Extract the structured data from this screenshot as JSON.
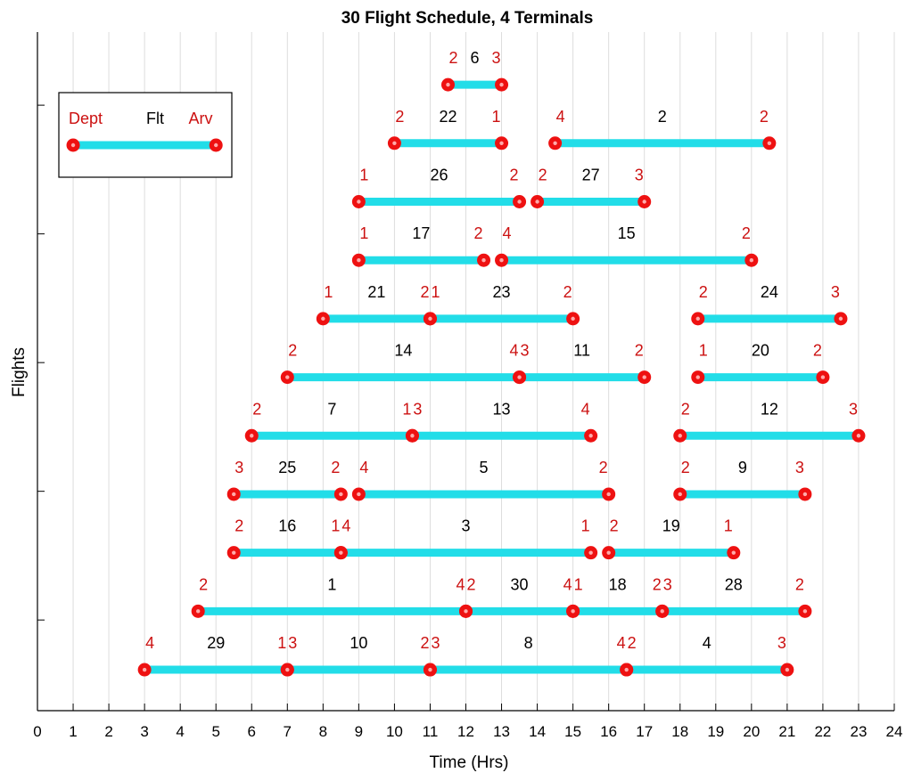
{
  "chart_data": {
    "type": "gantt",
    "title": "30 Flight Schedule, 4 Terminals",
    "xlabel": "Time (Hrs)",
    "ylabel": "Flights",
    "xlim": [
      0,
      24
    ],
    "ylim": [
      0.3,
      11.9
    ],
    "xticks": [
      0,
      1,
      2,
      3,
      4,
      5,
      6,
      7,
      8,
      9,
      10,
      11,
      12,
      13,
      14,
      15,
      16,
      17,
      18,
      19,
      20,
      21,
      22,
      23,
      24
    ],
    "grid": "vertical",
    "colors": {
      "bar": "#22dde8",
      "marker": "#ee1111",
      "terminal_text": "#cc1111",
      "grid": "#dddddd"
    },
    "legend": {
      "placement": "top-left",
      "dept_label": "Dept",
      "flt_label": "Flt",
      "arv_label": "Arv",
      "start": 1,
      "end": 5
    },
    "flights": [
      {
        "flt": "6",
        "row": 11,
        "start": 11.5,
        "end": 13,
        "dept": "2",
        "arv": "3"
      },
      {
        "flt": "22",
        "row": 10,
        "start": 10,
        "end": 13,
        "dept": "2",
        "arv": "1"
      },
      {
        "flt": "2",
        "row": 10,
        "start": 14.5,
        "end": 20.5,
        "dept": "4",
        "arv": "2"
      },
      {
        "flt": "26",
        "row": 9,
        "start": 9,
        "end": 13.5,
        "dept": "1",
        "arv": "2"
      },
      {
        "flt": "27",
        "row": 9,
        "start": 14,
        "end": 17,
        "dept": "2",
        "arv": "3"
      },
      {
        "flt": "17",
        "row": 8,
        "start": 9,
        "end": 12.5,
        "dept": "1",
        "arv": "2"
      },
      {
        "flt": "15",
        "row": 8,
        "start": 13,
        "end": 20,
        "dept": "4",
        "arv": "2"
      },
      {
        "flt": "21",
        "row": 7,
        "start": 8,
        "end": 11,
        "dept": "1",
        "arv": "2"
      },
      {
        "flt": "23",
        "row": 7,
        "start": 11,
        "end": 15,
        "dept": "1",
        "arv": "2"
      },
      {
        "flt": "24",
        "row": 7,
        "start": 18.5,
        "end": 22.5,
        "dept": "2",
        "arv": "3"
      },
      {
        "flt": "14",
        "row": 6,
        "start": 7,
        "end": 13.5,
        "dept": "2",
        "arv": "4"
      },
      {
        "flt": "11",
        "row": 6,
        "start": 13.5,
        "end": 17,
        "dept": "3",
        "arv": "2"
      },
      {
        "flt": "20",
        "row": 6,
        "start": 18.5,
        "end": 22,
        "dept": "1",
        "arv": "2"
      },
      {
        "flt": "7",
        "row": 5,
        "start": 6,
        "end": 10.5,
        "dept": "2",
        "arv": "1"
      },
      {
        "flt": "13",
        "row": 5,
        "start": 10.5,
        "end": 15.5,
        "dept": "3",
        "arv": "4"
      },
      {
        "flt": "12",
        "row": 5,
        "start": 18,
        "end": 23,
        "dept": "2",
        "arv": "3"
      },
      {
        "flt": "25",
        "row": 4,
        "start": 5.5,
        "end": 8.5,
        "dept": "3",
        "arv": "2"
      },
      {
        "flt": "5",
        "row": 4,
        "start": 9,
        "end": 16,
        "dept": "4",
        "arv": "2"
      },
      {
        "flt": "9",
        "row": 4,
        "start": 18,
        "end": 21.5,
        "dept": "2",
        "arv": "3"
      },
      {
        "flt": "16",
        "row": 3,
        "start": 5.5,
        "end": 8.5,
        "dept": "2",
        "arv": "1"
      },
      {
        "flt": "3",
        "row": 3,
        "start": 8.5,
        "end": 15.5,
        "dept": "4",
        "arv": "1"
      },
      {
        "flt": "19",
        "row": 3,
        "start": 16,
        "end": 19.5,
        "dept": "2",
        "arv": "1"
      },
      {
        "flt": "1",
        "row": 2,
        "start": 4.5,
        "end": 12,
        "dept": "2",
        "arv": "4"
      },
      {
        "flt": "30",
        "row": 2,
        "start": 12,
        "end": 15,
        "dept": "2",
        "arv": "4"
      },
      {
        "flt": "18",
        "row": 2,
        "start": 15,
        "end": 17.5,
        "dept": "1",
        "arv": "2"
      },
      {
        "flt": "28",
        "row": 2,
        "start": 17.5,
        "end": 21.5,
        "dept": "3",
        "arv": "2"
      },
      {
        "flt": "29",
        "row": 1,
        "start": 3,
        "end": 7,
        "dept": "4",
        "arv": "1"
      },
      {
        "flt": "10",
        "row": 1,
        "start": 7,
        "end": 11,
        "dept": "3",
        "arv": "2"
      },
      {
        "flt": "8",
        "row": 1,
        "start": 11,
        "end": 16.5,
        "dept": "3",
        "arv": "4"
      },
      {
        "flt": "4",
        "row": 1,
        "start": 16.5,
        "end": 21,
        "dept": "2",
        "arv": "3"
      }
    ]
  }
}
